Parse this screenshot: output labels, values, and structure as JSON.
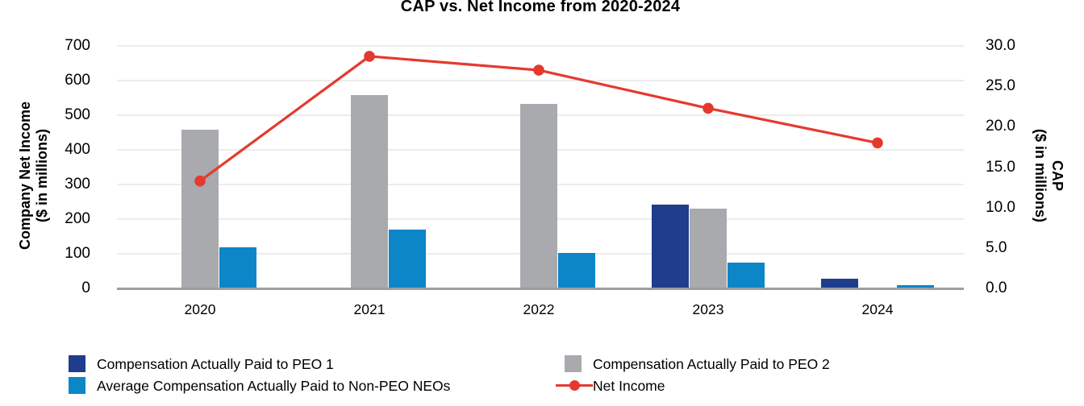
{
  "title": "CAP vs. Net Income from 2020-2024",
  "left_axis": {
    "title_line1": "Company Net Income",
    "title_line2": "($ in millions)",
    "ticks": [
      "700",
      "600",
      "500",
      "400",
      "300",
      "200",
      "100",
      "0"
    ]
  },
  "right_axis": {
    "title_line1": "CAP",
    "title_line2": "($ in millions)",
    "ticks": [
      "30.0",
      "25.0",
      "20.0",
      "15.0",
      "10.0",
      "5.0",
      "0.0"
    ]
  },
  "colors": {
    "peo1_dark_blue": "#1f3d8c",
    "peo2_gray": "#a8aaad",
    "neo_light_blue": "#0c86c7",
    "net_income_red": "#e5392f",
    "gridline": "#ececec",
    "axis_line": "#9c9ea0"
  },
  "legend": {
    "items": [
      {
        "label": "Compensation Actually Paid to PEO 1",
        "marker": "square",
        "color": "#1f3d8c",
        "col": 0,
        "row": 0
      },
      {
        "label": "Average Compensation Actually Paid to Non-PEO NEOs",
        "marker": "square",
        "color": "#0c86c7",
        "col": 0,
        "row": 1
      },
      {
        "label": "Compensation Actually Paid to PEO 2",
        "marker": "square",
        "color": "#a8aaad",
        "col": 1,
        "row": 0
      },
      {
        "label": "Net Income",
        "marker": "line-dot",
        "color": "#e5392f",
        "col": 1,
        "row": 1
      }
    ]
  },
  "chart_data": {
    "type": "combo-bar-line",
    "title": "CAP vs. Net Income from 2020-2024",
    "categories": [
      "2020",
      "2021",
      "2022",
      "2023",
      "2024"
    ],
    "left_axis_label": "Company Net Income ($ in millions)",
    "right_axis_label": "CAP ($ in millions)",
    "left_ylim": [
      0,
      700
    ],
    "right_ylim": [
      0,
      30
    ],
    "grid": true,
    "legend_position": "bottom",
    "bar_series": [
      {
        "name": "Compensation Actually Paid to PEO 1",
        "key": "peo1",
        "axis": "right",
        "color": "#1f3d8c",
        "values": [
          null,
          null,
          null,
          10.4,
          1.2
        ]
      },
      {
        "name": "Compensation Actually Paid to PEO 2",
        "key": "peo2",
        "axis": "right",
        "color": "#a8aaad",
        "values": [
          19.6,
          23.9,
          22.8,
          9.9,
          null
        ]
      },
      {
        "name": "Average Compensation Actually Paid to Non-PEO NEOs",
        "key": "neo",
        "axis": "right",
        "color": "#0c86c7",
        "values": [
          5.1,
          7.3,
          4.4,
          3.2,
          0.4
        ]
      }
    ],
    "line_series": [
      {
        "name": "Net Income",
        "key": "net-income",
        "axis": "left",
        "color": "#e5392f",
        "values": [
          310,
          670,
          630,
          520,
          420
        ]
      }
    ]
  }
}
